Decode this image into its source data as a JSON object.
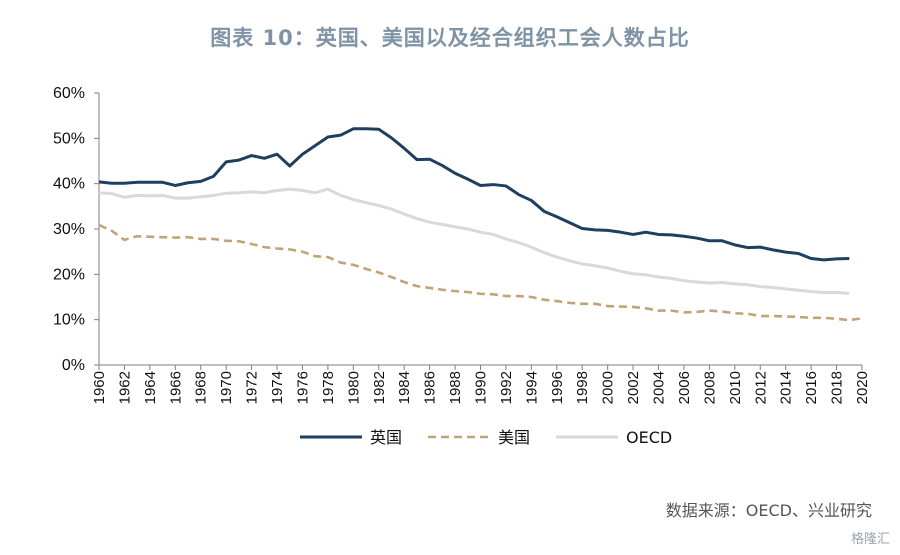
{
  "title": "图表 10：英国、美国以及经合组织工会人数占比",
  "source": "数据来源：OECD、兴业研究",
  "watermark": "格隆汇",
  "colors": {
    "uk": "#1f3f5f",
    "us": "#c0a475",
    "oecd": "#d9d9d9",
    "axis": "#7f7f7f"
  },
  "chart_data": {
    "type": "line",
    "title": "图表 10：英国、美国以及经合组织工会人数占比",
    "xlabel": "",
    "ylabel": "",
    "xlim": [
      1960,
      2020
    ],
    "ylim": [
      0,
      60
    ],
    "y_ticks": [
      "0%",
      "10%",
      "20%",
      "30%",
      "40%",
      "50%",
      "60%"
    ],
    "x_ticks": [
      "1960",
      "1962",
      "1964",
      "1966",
      "1968",
      "1970",
      "1972",
      "1974",
      "1976",
      "1978",
      "1980",
      "1982",
      "1984",
      "1986",
      "1988",
      "1990",
      "1992",
      "1994",
      "1996",
      "1998",
      "2000",
      "2002",
      "2004",
      "2006",
      "2008",
      "2010",
      "2012",
      "2014",
      "2016",
      "2018",
      "2020"
    ],
    "legend_position": "bottom",
    "grid": false,
    "series": [
      {
        "name": "英国",
        "style": "solid",
        "x": [
          1960,
          1961,
          1962,
          1963,
          1964,
          1965,
          1966,
          1967,
          1968,
          1969,
          1970,
          1971,
          1972,
          1973,
          1974,
          1975,
          1976,
          1977,
          1978,
          1979,
          1980,
          1981,
          1982,
          1983,
          1984,
          1985,
          1986,
          1987,
          1988,
          1989,
          1990,
          1991,
          1992,
          1993,
          1994,
          1995,
          1996,
          1997,
          1998,
          1999,
          2000,
          2001,
          2002,
          2003,
          2004,
          2005,
          2006,
          2007,
          2008,
          2009,
          2010,
          2011,
          2012,
          2013,
          2014,
          2015,
          2016,
          2017,
          2018,
          2019
        ],
        "values": [
          40.4,
          40.1,
          40.1,
          40.3,
          40.3,
          40.3,
          39.6,
          40.2,
          40.5,
          41.6,
          44.8,
          45.2,
          46.2,
          45.6,
          46.5,
          43.9,
          46.5,
          48.4,
          50.3,
          50.7,
          52.1,
          52.1,
          52.0,
          50.1,
          47.8,
          45.3,
          45.4,
          44.0,
          42.3,
          41.0,
          39.6,
          39.8,
          39.5,
          37.6,
          36.3,
          33.9,
          32.7,
          31.4,
          30.1,
          29.8,
          29.7,
          29.3,
          28.8,
          29.3,
          28.8,
          28.7,
          28.4,
          28.0,
          27.4,
          27.4,
          26.5,
          25.9,
          26.0,
          25.4,
          24.9,
          24.6,
          23.5,
          23.2,
          23.4,
          23.5
        ]
      },
      {
        "name": "美国",
        "style": "dashed",
        "x": [
          1960,
          1961,
          1962,
          1963,
          1964,
          1965,
          1966,
          1967,
          1968,
          1969,
          1970,
          1971,
          1972,
          1973,
          1974,
          1975,
          1976,
          1977,
          1978,
          1979,
          1980,
          1981,
          1982,
          1983,
          1984,
          1985,
          1986,
          1987,
          1988,
          1989,
          1990,
          1991,
          1992,
          1993,
          1994,
          1995,
          1996,
          1997,
          1998,
          1999,
          2000,
          2001,
          2002,
          2003,
          2004,
          2005,
          2006,
          2007,
          2008,
          2009,
          2010,
          2011,
          2012,
          2013,
          2014,
          2015,
          2016,
          2017,
          2018,
          2019,
          2020
        ],
        "values": [
          30.9,
          29.6,
          27.6,
          28.4,
          28.3,
          28.2,
          28.1,
          28.2,
          27.8,
          27.8,
          27.4,
          27.3,
          26.7,
          26.0,
          25.7,
          25.5,
          25.0,
          24.0,
          23.8,
          22.6,
          22.1,
          21.2,
          20.4,
          19.4,
          18.3,
          17.4,
          17.0,
          16.6,
          16.3,
          16.1,
          15.7,
          15.6,
          15.2,
          15.2,
          15.0,
          14.4,
          14.1,
          13.7,
          13.5,
          13.5,
          13.0,
          12.9,
          12.8,
          12.5,
          12.0,
          12.0,
          11.6,
          11.7,
          12.0,
          11.8,
          11.4,
          11.3,
          10.8,
          10.8,
          10.7,
          10.6,
          10.4,
          10.4,
          10.2,
          9.9,
          10.3
        ]
      },
      {
        "name": "OECD",
        "style": "solid",
        "x": [
          1960,
          1961,
          1962,
          1963,
          1964,
          1965,
          1966,
          1967,
          1968,
          1969,
          1970,
          1971,
          1972,
          1973,
          1974,
          1975,
          1976,
          1977,
          1978,
          1979,
          1980,
          1981,
          1982,
          1983,
          1984,
          1985,
          1986,
          1987,
          1988,
          1989,
          1990,
          1991,
          1992,
          1993,
          1994,
          1995,
          1996,
          1997,
          1998,
          1999,
          2000,
          2001,
          2002,
          2003,
          2004,
          2005,
          2006,
          2007,
          2008,
          2009,
          2010,
          2011,
          2012,
          2013,
          2014,
          2015,
          2016,
          2017,
          2018,
          2019
        ],
        "values": [
          38.0,
          37.8,
          37.0,
          37.4,
          37.3,
          37.4,
          36.8,
          36.8,
          37.1,
          37.4,
          37.9,
          38.0,
          38.2,
          38.0,
          38.5,
          38.8,
          38.5,
          38.0,
          38.8,
          37.4,
          36.5,
          35.8,
          35.2,
          34.4,
          33.3,
          32.3,
          31.5,
          31.0,
          30.5,
          30.0,
          29.3,
          28.8,
          27.8,
          27.0,
          26.0,
          24.8,
          23.8,
          23.0,
          22.3,
          21.9,
          21.4,
          20.7,
          20.1,
          19.9,
          19.4,
          19.1,
          18.6,
          18.3,
          18.1,
          18.2,
          17.9,
          17.7,
          17.3,
          17.1,
          16.8,
          16.5,
          16.2,
          16.0,
          16.0,
          15.8
        ]
      }
    ]
  },
  "legend": [
    {
      "label": "英国",
      "style": "solid",
      "color": "#1f3f5f"
    },
    {
      "label": "美国",
      "style": "dashed",
      "color": "#c0a475"
    },
    {
      "label": "OECD",
      "style": "solid",
      "color": "#d9d9d9"
    }
  ]
}
